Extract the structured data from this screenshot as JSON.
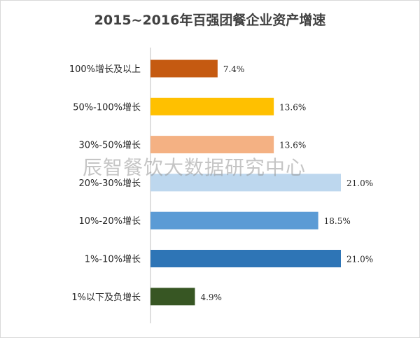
{
  "chart_data": {
    "type": "bar",
    "orientation": "horizontal",
    "title": "2015~2016年百强团餐企业资产增速",
    "categories": [
      "100%增长及以上",
      "50%-100%增长",
      "30%-50%增长",
      "20%-30%增长",
      "10%-20%增长",
      "1%-10%增长",
      "1%以下及负增长"
    ],
    "values": [
      7.4,
      13.6,
      13.6,
      21.0,
      18.5,
      21.0,
      4.9
    ],
    "value_labels": [
      "7.4%",
      "13.6%",
      "13.6%",
      "21.0%",
      "18.5%",
      "21.0%",
      "4.9%"
    ],
    "colors": [
      "#c55a11",
      "#ffc000",
      "#f4b183",
      "#bdd7ee",
      "#5b9bd5",
      "#2e75b6",
      "#375623"
    ],
    "xlim": [
      0,
      21.0
    ],
    "grid": false,
    "legend": "none"
  },
  "watermark": "辰智餐饮大数据研究中心"
}
